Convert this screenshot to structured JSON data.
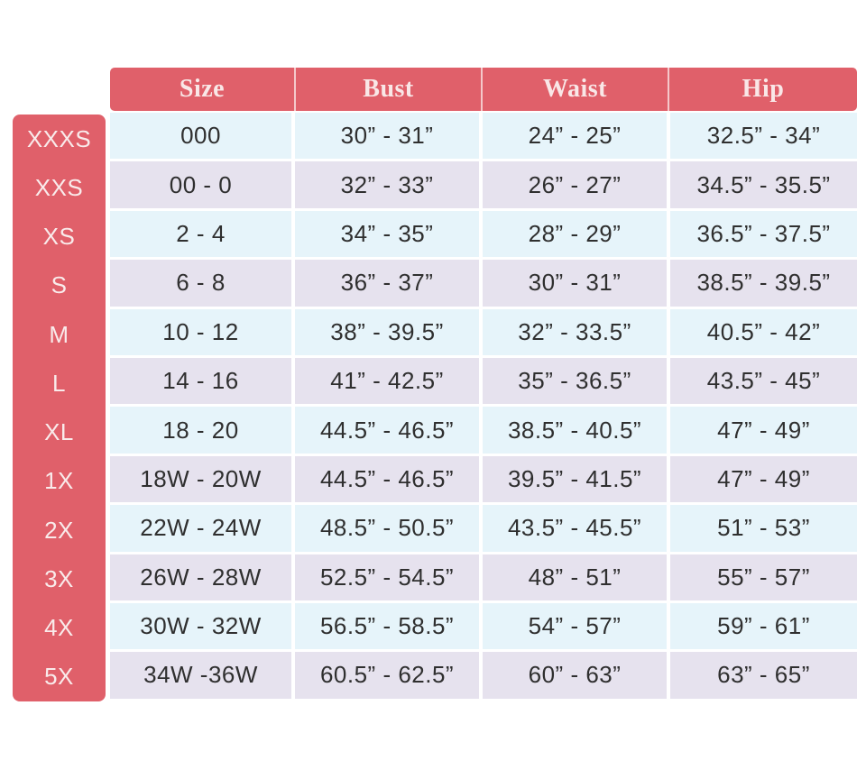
{
  "chart_data": {
    "type": "table",
    "columns": [
      "Size",
      "Bust",
      "Waist",
      "Hip"
    ],
    "rows": [
      {
        "label": "XXXS",
        "size": "000",
        "bust": "30” - 31”",
        "waist": "24” - 25”",
        "hip": "32.5” - 34”"
      },
      {
        "label": "XXS",
        "size": "00 - 0",
        "bust": "32” - 33”",
        "waist": "26” - 27”",
        "hip": "34.5” - 35.5”"
      },
      {
        "label": "XS",
        "size": "2 - 4",
        "bust": "34” - 35”",
        "waist": "28” - 29”",
        "hip": "36.5” - 37.5”"
      },
      {
        "label": "S",
        "size": "6 - 8",
        "bust": "36” - 37”",
        "waist": "30” - 31”",
        "hip": "38.5” - 39.5”"
      },
      {
        "label": "M",
        "size": "10 - 12",
        "bust": "38” - 39.5”",
        "waist": "32” - 33.5”",
        "hip": "40.5” - 42”"
      },
      {
        "label": "L",
        "size": "14 - 16",
        "bust": "41” - 42.5”",
        "waist": "35” - 36.5”",
        "hip": "43.5” - 45”"
      },
      {
        "label": "XL",
        "size": "18 - 20",
        "bust": "44.5” - 46.5”",
        "waist": "38.5” - 40.5”",
        "hip": "47” - 49”"
      },
      {
        "label": "1X",
        "size": "18W - 20W",
        "bust": "44.5” - 46.5”",
        "waist": "39.5” - 41.5”",
        "hip": "47” - 49”"
      },
      {
        "label": "2X",
        "size": "22W - 24W",
        "bust": "48.5” - 50.5”",
        "waist": "43.5” - 45.5”",
        "hip": "51” - 53”"
      },
      {
        "label": "3X",
        "size": "26W - 28W",
        "bust": "52.5” - 54.5”",
        "waist": "48” - 51”",
        "hip": "55” - 57”"
      },
      {
        "label": "4X",
        "size": "30W - 32W",
        "bust": "56.5” - 58.5”",
        "waist": "54” - 57”",
        "hip": "59” - 61”"
      },
      {
        "label": "5X",
        "size": "34W -36W",
        "bust": "60.5” - 62.5”",
        "waist": "60” - 63”",
        "hip": "63” - 65”"
      }
    ]
  },
  "colors": {
    "header_coral": "#e0606a",
    "header_text": "#f9e7e7",
    "side_label_text": "#f9ebeb",
    "row_light_blue": "#e6f4fa",
    "row_lavender": "#e6e2ee",
    "cell_text": "#2f2f2f",
    "background": "#ffffff"
  }
}
